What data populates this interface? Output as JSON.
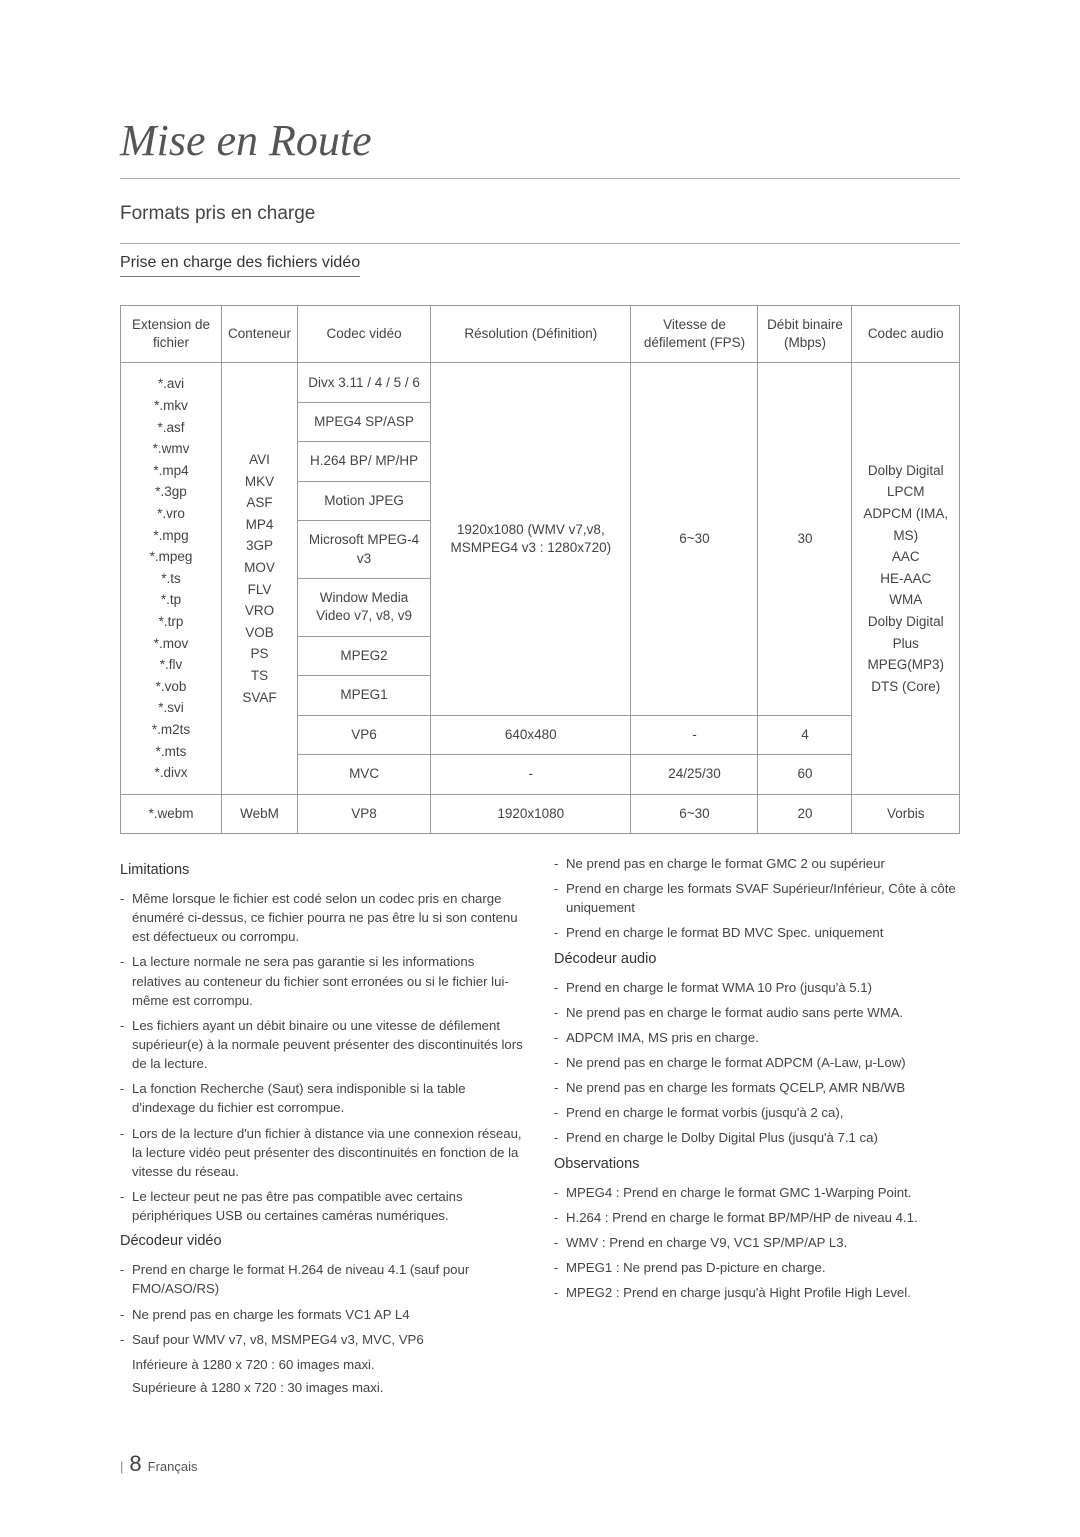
{
  "title": "Mise en Route",
  "subtitle": "Formats pris en charge",
  "section_heading": "Prise en charge des fichiers vidéo",
  "table": {
    "headers": {
      "ext": "Extension de fichier",
      "container": "Conteneur",
      "vcodec": "Codec vidéo",
      "res": "Résolution (Définition)",
      "fps": "Vitesse de défilement (FPS)",
      "bitrate": "Débit binaire (Mbps)",
      "acodec": "Codec audio"
    },
    "ext_main": "*.avi\n*.mkv\n*.asf\n*.wmv\n*.mp4\n*.3gp\n*.vro\n*.mpg\n*.mpeg\n*.ts\n*.tp\n*.trp\n*.mov\n*.flv\n*.vob\n*.svi\n*.m2ts\n*.mts\n*.divx",
    "container_main": "AVI\nMKV\nASF\nMP4\n3GP\nMOV\nFLV\nVRO\nVOB\nPS\nTS\nSVAF",
    "vcodec": {
      "r1": "Divx 3.11 / 4 / 5 / 6",
      "r2": "MPEG4 SP/ASP",
      "r3": "H.264 BP/ MP/HP",
      "r4": "Motion JPEG",
      "r5": "Microsoft MPEG-4 v3",
      "r6": "Window Media Video v7, v8, v9",
      "r7": "MPEG2",
      "r8": "MPEG1",
      "r9": "VP6",
      "r10": "MVC",
      "r11": "VP8"
    },
    "res_main": "1920x1080 (WMV v7,v8, MSMPEG4 v3 : 1280x720)",
    "res_vp6": "640x480",
    "res_mvc": "-",
    "res_vp8": "1920x1080",
    "fps_main": "6~30",
    "fps_vp6": "-",
    "fps_mvc": "24/25/30",
    "fps_vp8": "6~30",
    "bitrate_main": "30",
    "bitrate_vp6": "4",
    "bitrate_mvc": "60",
    "bitrate_vp8": "20",
    "acodec_main": "Dolby Digital\nLPCM\nADPCM (IMA, MS)\nAAC\nHE-AAC\nWMA\nDolby Digital Plus\nMPEG(MP3)\nDTS (Core)",
    "acodec_vp8": "Vorbis",
    "ext_webm": "*.webm",
    "container_webm": "WebM"
  },
  "left": {
    "h1": "Limitations",
    "l1": "Même lorsque le fichier est codé selon un codec pris en charge énuméré ci-dessus, ce fichier pourra ne pas être lu si son contenu est défectueux ou corrompu.",
    "l2": "La lecture normale ne sera pas garantie si les informations relatives au conteneur du fichier sont erronées ou si le fichier lui-même est corrompu.",
    "l3": "Les fichiers ayant un débit binaire ou une vitesse de défilement supérieur(e) à la normale peuvent présenter des discontinuités lors de la lecture.",
    "l4": "La fonction Recherche (Saut) sera indisponible si la table d'indexage du fichier est corrompue.",
    "l5": "Lors de la lecture d'un fichier à distance via une connexion réseau, la lecture vidéo peut présenter des discontinuités en fonction de la vitesse du réseau.",
    "l6": "Le lecteur peut ne pas être pas compatible avec certains périphériques USB ou certaines caméras numériques.",
    "h2": "Décodeur vidéo",
    "v1": "Prend en charge le format H.264 de niveau 4.1 (sauf pour FMO/ASO/RS)",
    "v2": "Ne prend pas en charge les formats VC1 AP L4",
    "v3": "Sauf pour WMV v7, v8, MSMPEG4 v3, MVC, VP6",
    "v3a": "Inférieure à 1280 x 720 : 60 images maxi.",
    "v3b": "Supérieure à 1280 x 720 : 30 images maxi."
  },
  "right": {
    "t1": "Ne prend pas en charge le format GMC 2 ou supérieur",
    "t2": "Prend en charge les formats SVAF Supérieur/Inférieur, Côte à côte uniquement",
    "t3": "Prend en charge le format BD MVC Spec. uniquement",
    "h1": "Décodeur audio",
    "a1": "Prend en charge le format WMA 10 Pro (jusqu'à 5.1)",
    "a2": "Ne prend pas en charge le format audio sans perte WMA.",
    "a3": "ADPCM IMA, MS pris en charge.",
    "a4": "Ne prend pas en charge le format ADPCM (A-Law, μ-Low)",
    "a5": "Ne prend pas en charge les formats QCELP, AMR NB/WB",
    "a6": "Prend en charge le format vorbis (jusqu'à 2 ca),",
    "a7": "Prend en charge le Dolby Digital Plus (jusqu'à 7.1 ca)",
    "h2": "Observations",
    "o1": "MPEG4 : Prend en charge le format GMC 1-Warping Point.",
    "o2": "H.264 : Prend en charge le format BP/MP/HP de niveau 4.1.",
    "o3": "WMV : Prend en charge V9, VC1 SP/MP/AP L3.",
    "o4": "MPEG1 : Ne prend pas D-picture en charge.",
    "o5": "MPEG2 : Prend en charge jusqu'à Hight Profile High Level."
  },
  "footer": {
    "bar": "|",
    "page": "8",
    "lang": "Français"
  }
}
